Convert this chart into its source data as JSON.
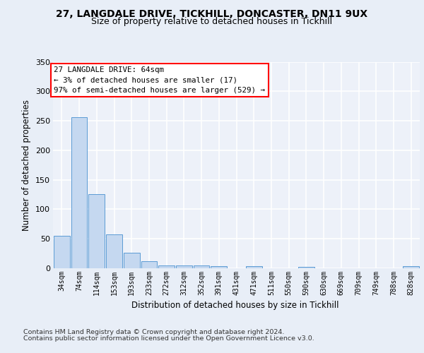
{
  "title_line1": "27, LANGDALE DRIVE, TICKHILL, DONCASTER, DN11 9UX",
  "title_line2": "Size of property relative to detached houses in Tickhill",
  "xlabel": "Distribution of detached houses by size in Tickhill",
  "ylabel": "Number of detached properties",
  "categories": [
    "34sqm",
    "74sqm",
    "114sqm",
    "153sqm",
    "193sqm",
    "233sqm",
    "272sqm",
    "312sqm",
    "352sqm",
    "391sqm",
    "431sqm",
    "471sqm",
    "511sqm",
    "550sqm",
    "590sqm",
    "630sqm",
    "669sqm",
    "709sqm",
    "749sqm",
    "788sqm",
    "828sqm"
  ],
  "values": [
    55,
    256,
    126,
    57,
    26,
    12,
    5,
    5,
    5,
    3,
    0,
    4,
    0,
    0,
    2,
    0,
    0,
    0,
    0,
    0,
    3
  ],
  "bar_color": "#c5d8f0",
  "bar_edge_color": "#5b9bd5",
  "annotation_line1": "27 LANGDALE DRIVE: 64sqm",
  "annotation_line2": "← 3% of detached houses are smaller (17)",
  "annotation_line3": "97% of semi-detached houses are larger (529) →",
  "annotation_box_color": "white",
  "annotation_box_edge_color": "red",
  "background_color": "#e8eef7",
  "plot_background_color": "#edf1f9",
  "grid_color": "#ffffff",
  "ylim": [
    0,
    350
  ],
  "yticks": [
    0,
    50,
    100,
    150,
    200,
    250,
    300,
    350
  ],
  "footer_text1": "Contains HM Land Registry data © Crown copyright and database right 2024.",
  "footer_text2": "Contains public sector information licensed under the Open Government Licence v3.0."
}
